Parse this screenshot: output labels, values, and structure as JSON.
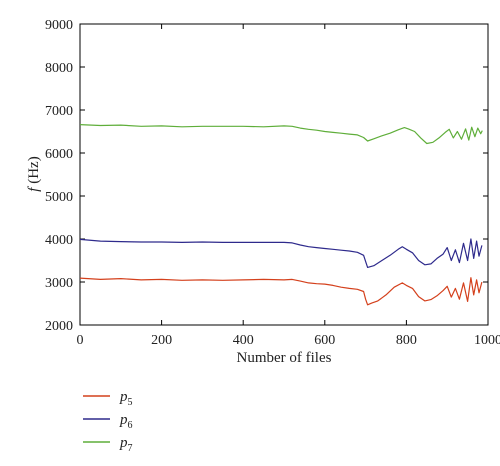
{
  "chart_data": {
    "type": "line",
    "xlabel": "Number of files",
    "ylabel_var": "f",
    "ylabel_unit": " (Hz)",
    "xlim": [
      0,
      1000
    ],
    "ylim": [
      2000,
      9000
    ],
    "x_ticks": [
      "0",
      "200",
      "400",
      "600",
      "800",
      "1000"
    ],
    "y_ticks": [
      "2000",
      "3000",
      "4000",
      "5000",
      "6000",
      "7000",
      "8000",
      "9000"
    ],
    "x_tick_values": [
      0,
      200,
      400,
      600,
      800,
      1000
    ],
    "y_tick_values": [
      2000,
      3000,
      4000,
      5000,
      6000,
      7000,
      8000,
      9000
    ],
    "grid": false,
    "legend_position": "below-left",
    "series": [
      {
        "name": "p",
        "name_sub": "5",
        "color": "#d4401c",
        "points": [
          [
            0,
            3090
          ],
          [
            50,
            3060
          ],
          [
            100,
            3080
          ],
          [
            150,
            3050
          ],
          [
            200,
            3060
          ],
          [
            250,
            3040
          ],
          [
            300,
            3050
          ],
          [
            350,
            3040
          ],
          [
            400,
            3050
          ],
          [
            450,
            3060
          ],
          [
            500,
            3050
          ],
          [
            520,
            3060
          ],
          [
            540,
            3020
          ],
          [
            560,
            2980
          ],
          [
            580,
            2960
          ],
          [
            600,
            2950
          ],
          [
            620,
            2920
          ],
          [
            640,
            2880
          ],
          [
            660,
            2850
          ],
          [
            680,
            2830
          ],
          [
            695,
            2780
          ],
          [
            700,
            2600
          ],
          [
            705,
            2470
          ],
          [
            715,
            2510
          ],
          [
            730,
            2560
          ],
          [
            750,
            2700
          ],
          [
            770,
            2880
          ],
          [
            790,
            2980
          ],
          [
            800,
            2920
          ],
          [
            815,
            2850
          ],
          [
            830,
            2660
          ],
          [
            845,
            2560
          ],
          [
            860,
            2590
          ],
          [
            875,
            2680
          ],
          [
            890,
            2800
          ],
          [
            900,
            2900
          ],
          [
            910,
            2650
          ],
          [
            920,
            2850
          ],
          [
            930,
            2600
          ],
          [
            940,
            2980
          ],
          [
            950,
            2550
          ],
          [
            958,
            3100
          ],
          [
            965,
            2700
          ],
          [
            972,
            3050
          ],
          [
            978,
            2750
          ],
          [
            985,
            3000
          ]
        ]
      },
      {
        "name": "p",
        "name_sub": "6",
        "color": "#2e2a8c",
        "points": [
          [
            0,
            3990
          ],
          [
            50,
            3950
          ],
          [
            100,
            3940
          ],
          [
            150,
            3930
          ],
          [
            200,
            3930
          ],
          [
            250,
            3920
          ],
          [
            300,
            3930
          ],
          [
            350,
            3920
          ],
          [
            400,
            3920
          ],
          [
            450,
            3920
          ],
          [
            500,
            3920
          ],
          [
            520,
            3910
          ],
          [
            540,
            3860
          ],
          [
            560,
            3820
          ],
          [
            580,
            3800
          ],
          [
            600,
            3780
          ],
          [
            620,
            3760
          ],
          [
            640,
            3740
          ],
          [
            660,
            3720
          ],
          [
            680,
            3690
          ],
          [
            695,
            3620
          ],
          [
            700,
            3480
          ],
          [
            705,
            3340
          ],
          [
            720,
            3380
          ],
          [
            740,
            3500
          ],
          [
            760,
            3620
          ],
          [
            780,
            3760
          ],
          [
            790,
            3820
          ],
          [
            800,
            3760
          ],
          [
            815,
            3680
          ],
          [
            830,
            3500
          ],
          [
            845,
            3400
          ],
          [
            860,
            3420
          ],
          [
            875,
            3550
          ],
          [
            890,
            3650
          ],
          [
            900,
            3800
          ],
          [
            910,
            3500
          ],
          [
            920,
            3750
          ],
          [
            930,
            3450
          ],
          [
            940,
            3900
          ],
          [
            950,
            3500
          ],
          [
            958,
            4000
          ],
          [
            965,
            3550
          ],
          [
            972,
            3950
          ],
          [
            978,
            3600
          ],
          [
            985,
            3850
          ]
        ]
      },
      {
        "name": "p",
        "name_sub": "7",
        "color": "#5fae3a",
        "points": [
          [
            0,
            6660
          ],
          [
            50,
            6640
          ],
          [
            100,
            6650
          ],
          [
            150,
            6620
          ],
          [
            200,
            6630
          ],
          [
            250,
            6610
          ],
          [
            300,
            6620
          ],
          [
            350,
            6620
          ],
          [
            400,
            6620
          ],
          [
            450,
            6610
          ],
          [
            500,
            6630
          ],
          [
            520,
            6620
          ],
          [
            540,
            6580
          ],
          [
            560,
            6550
          ],
          [
            580,
            6530
          ],
          [
            600,
            6500
          ],
          [
            620,
            6480
          ],
          [
            640,
            6460
          ],
          [
            660,
            6440
          ],
          [
            680,
            6420
          ],
          [
            695,
            6360
          ],
          [
            705,
            6280
          ],
          [
            720,
            6330
          ],
          [
            740,
            6400
          ],
          [
            760,
            6460
          ],
          [
            780,
            6540
          ],
          [
            795,
            6590
          ],
          [
            805,
            6560
          ],
          [
            820,
            6500
          ],
          [
            835,
            6350
          ],
          [
            850,
            6220
          ],
          [
            865,
            6250
          ],
          [
            880,
            6350
          ],
          [
            895,
            6480
          ],
          [
            905,
            6550
          ],
          [
            915,
            6350
          ],
          [
            925,
            6500
          ],
          [
            935,
            6320
          ],
          [
            945,
            6560
          ],
          [
            953,
            6300
          ],
          [
            960,
            6600
          ],
          [
            968,
            6380
          ],
          [
            975,
            6580
          ],
          [
            982,
            6450
          ],
          [
            986,
            6520
          ]
        ]
      }
    ]
  }
}
